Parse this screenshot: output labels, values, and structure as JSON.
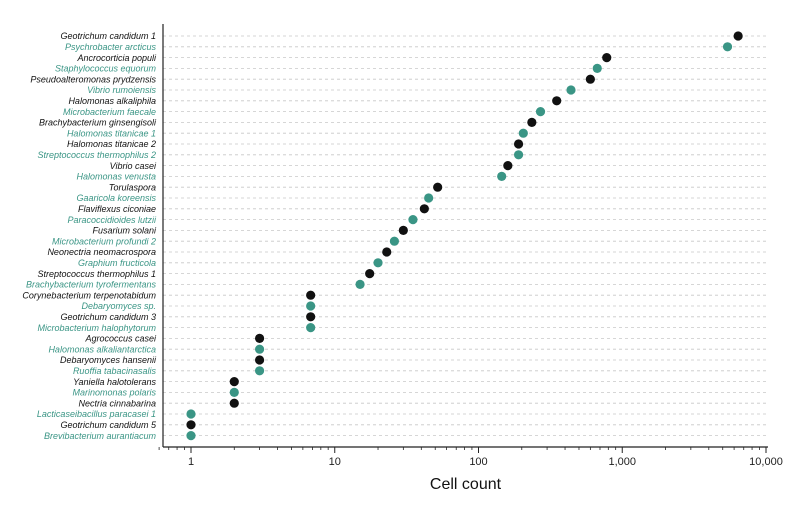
{
  "colors": {
    "black": "#111111",
    "teal": "#3a9585"
  },
  "chart_data": {
    "type": "scatter",
    "xscale": "log",
    "xlabel": "Cell count",
    "xlim": [
      0.6,
      10000
    ],
    "xticks": [
      1,
      10,
      100,
      1000,
      10000
    ],
    "xtick_labels": [
      "1",
      "10",
      "100",
      "1,000",
      "10,000"
    ],
    "grid": "horizontal dashed",
    "points": [
      {
        "label": "Geotrichum candidum 1",
        "value": 6400,
        "group": "black"
      },
      {
        "label": "Psychrobacter arcticus",
        "value": 5400,
        "group": "teal"
      },
      {
        "label": "Ancrocorticia populi",
        "value": 780,
        "group": "black"
      },
      {
        "label": "Staphylococcus equorum",
        "value": 670,
        "group": "teal"
      },
      {
        "label": "Pseudoalteromonas prydzensis",
        "value": 600,
        "group": "black"
      },
      {
        "label": "Vibrio rumoiensis",
        "value": 440,
        "group": "teal"
      },
      {
        "label": "Halomonas alkaliphila",
        "value": 350,
        "group": "black"
      },
      {
        "label": "Microbacterium faecale",
        "value": 270,
        "group": "teal"
      },
      {
        "label": "Brachybacterium ginsengisoli",
        "value": 235,
        "group": "black"
      },
      {
        "label": "Halomonas titanicae 1",
        "value": 205,
        "group": "teal"
      },
      {
        "label": "Halomonas titanicae 2",
        "value": 190,
        "group": "black"
      },
      {
        "label": "Streptococcus thermophilus 2",
        "value": 190,
        "group": "teal"
      },
      {
        "label": "Vibrio casei",
        "value": 160,
        "group": "black"
      },
      {
        "label": "Halomonas venusta",
        "value": 145,
        "group": "teal"
      },
      {
        "label": "Torulaspora",
        "value": 52,
        "group": "black"
      },
      {
        "label": "Gaaricola koreensis",
        "value": 45,
        "group": "teal"
      },
      {
        "label": "Flaviflexus ciconiae",
        "value": 42,
        "group": "black"
      },
      {
        "label": "Paracoccidioides lutzii",
        "value": 35,
        "group": "teal"
      },
      {
        "label": "Fusarium solani",
        "value": 30,
        "group": "black"
      },
      {
        "label": "Microbacterium profundi 2",
        "value": 26,
        "group": "teal"
      },
      {
        "label": "Neonectria neomacrospora",
        "value": 23,
        "group": "black"
      },
      {
        "label": "Graphium fructicola",
        "value": 20,
        "group": "teal"
      },
      {
        "label": "Streptococcus thermophilus 1",
        "value": 17.5,
        "group": "black"
      },
      {
        "label": "Brachybacterium tyrofermentans",
        "value": 15,
        "group": "teal"
      },
      {
        "label": "Corynebacterium terpenotabidum",
        "value": 6.8,
        "group": "black"
      },
      {
        "label": "Debaryomyces sp.",
        "value": 6.8,
        "group": "teal"
      },
      {
        "label": "Geotrichum candidum 3",
        "value": 6.8,
        "group": "black"
      },
      {
        "label": "Microbacterium halophytorum",
        "value": 6.8,
        "group": "teal"
      },
      {
        "label": "Agrococcus casei",
        "value": 3,
        "group": "black"
      },
      {
        "label": "Halomonas alkaliantarctica",
        "value": 3,
        "group": "teal"
      },
      {
        "label": "Debaryomyces hansenii",
        "value": 3,
        "group": "black"
      },
      {
        "label": "Ruoffia tabacinasalis",
        "value": 3,
        "group": "teal"
      },
      {
        "label": "Yaniella halotolerans",
        "value": 2,
        "group": "black"
      },
      {
        "label": "Marinomonas polaris",
        "value": 2,
        "group": "teal"
      },
      {
        "label": "Nectria cinnabarina",
        "value": 2,
        "group": "black"
      },
      {
        "label": "Lacticaseibacillus paracasei 1",
        "value": 1,
        "group": "teal"
      },
      {
        "label": "Geotrichum candidum 5",
        "value": 1,
        "group": "black"
      },
      {
        "label": "Brevibacterium aurantiacum",
        "value": 1,
        "group": "teal"
      }
    ]
  }
}
